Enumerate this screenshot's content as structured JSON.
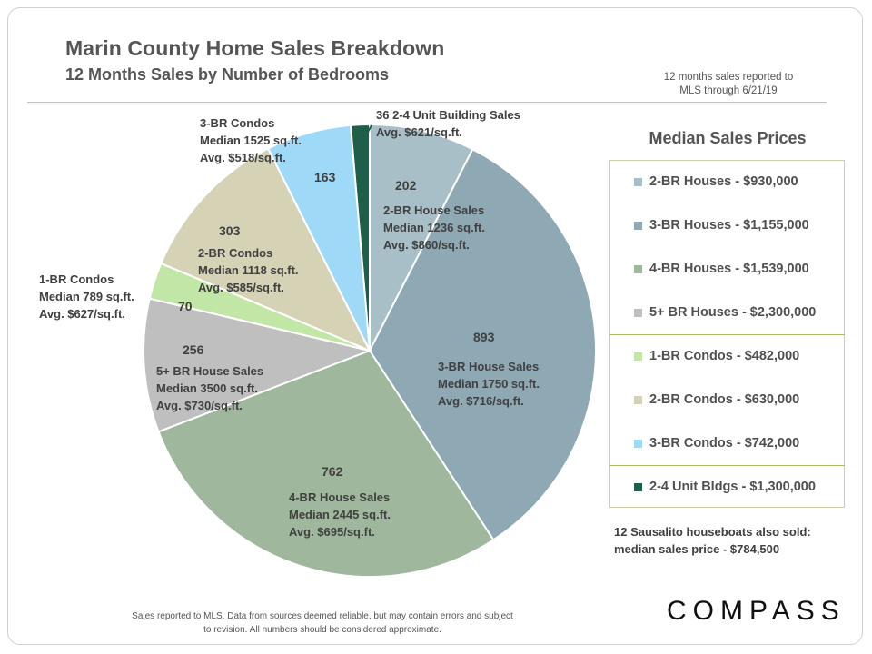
{
  "header": {
    "title": "Marin County Home Sales Breakdown",
    "subtitle": "12 Months Sales by Number of Bedrooms",
    "report_note_line1": "12 months sales reported to",
    "report_note_line2": "MLS through 6/21/19"
  },
  "chart_data": {
    "type": "pie",
    "title": "Marin County Home Sales Breakdown",
    "subtitle": "12 Months Sales by Number of Bedrooms",
    "slices": [
      {
        "category": "2-BR House Sales",
        "value": 202,
        "color": "#a9bfc8",
        "label_lines": [
          "2-BR House Sales",
          "Median 1236 sq.ft.",
          "Avg. $860/sq.ft."
        ]
      },
      {
        "category": "3-BR House Sales",
        "value": 893,
        "color": "#8ea8b4",
        "label_lines": [
          "3-BR House Sales",
          "Median 1750 sq.ft.",
          "Avg. $716/sq.ft."
        ]
      },
      {
        "category": "4-BR House Sales",
        "value": 762,
        "color": "#9fb79c",
        "label_lines": [
          "4-BR House Sales",
          "Median 2445 sq.ft.",
          "Avg. $695/sq.ft."
        ]
      },
      {
        "category": "5+ BR House Sales",
        "value": 256,
        "color": "#bfbfbf",
        "label_lines": [
          "5+ BR House Sales",
          "Median 3500 sq.ft.",
          "Avg. $730/sq.ft."
        ]
      },
      {
        "category": "1-BR Condos",
        "value": 70,
        "color": "#c2e6a6",
        "label_lines": [
          "1-BR Condos",
          "Median 789 sq.ft.",
          "Avg. $627/sq.ft."
        ]
      },
      {
        "category": "2-BR Condos",
        "value": 303,
        "color": "#d6d2b6",
        "label_lines": [
          "2-BR Condos",
          "Median 1118 sq.ft.",
          "Avg. $585/sq.ft."
        ]
      },
      {
        "category": "3-BR Condos",
        "value": 163,
        "color": "#9ed9f7",
        "label_lines": [
          "3-BR Condos",
          "Median 1525 sq.ft.",
          "Avg. $518/sq.ft."
        ]
      },
      {
        "category": "2-4 Unit Building Sales",
        "value": 36,
        "color": "#1f5e4a",
        "label_lines": [
          "36 2-4 Unit Building Sales",
          "Avg. $621/sq.ft."
        ]
      }
    ],
    "legend_title": "Median Sales Prices",
    "legend": [
      {
        "label": "2-BR Houses - $930,000",
        "color": "#a9bfc8"
      },
      {
        "label": "3-BR Houses - $1,155,000",
        "color": "#8ea8b4"
      },
      {
        "label": "4-BR Houses - $1,539,000",
        "color": "#9fb79c"
      },
      {
        "label": "5+ BR Houses - $2,300,000",
        "color": "#bfbfbf"
      },
      {
        "label": "1-BR Condos - $482,000",
        "color": "#c2e6a6"
      },
      {
        "label": "2-BR Condos - $630,000",
        "color": "#d6d2b6"
      },
      {
        "label": "3-BR Condos - $742,000",
        "color": "#9ed9f7"
      },
      {
        "label": "2-4 Unit Bldgs - $1,300,000",
        "color": "#1f5e4a"
      }
    ]
  },
  "notes": {
    "houseboats_line1": "12 Sausalito houseboats also sold:",
    "houseboats_line2": "median sales price - $784,500",
    "footer_line1": "Sales reported  to MLS. Data from sources deemed reliable, but may contain errors and subject",
    "footer_line2": "to revision.  All numbers should  be considered  approximate."
  },
  "branding": {
    "logo": "COMPASS"
  }
}
